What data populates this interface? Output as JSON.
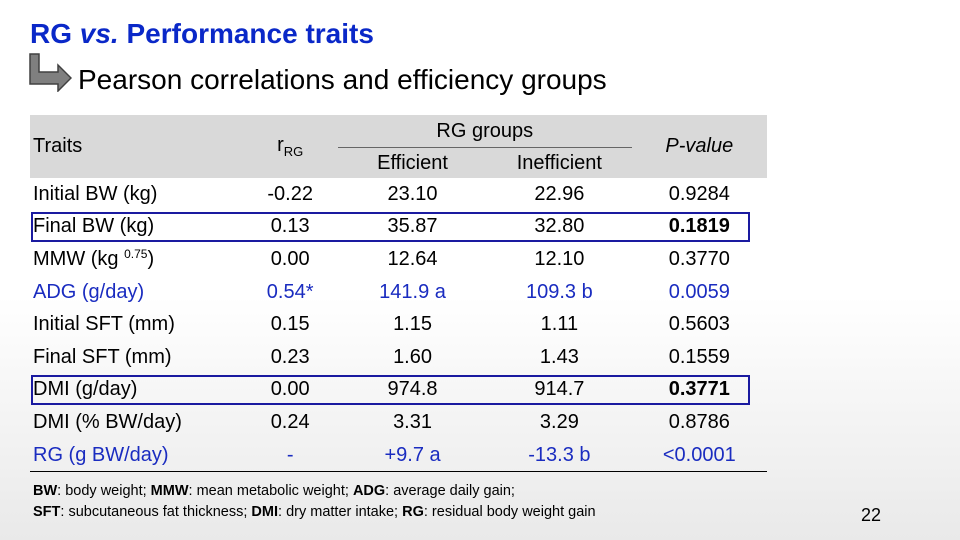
{
  "title": {
    "prefix": "RG ",
    "emphasis": "vs.",
    "suffix": " Performance traits"
  },
  "subtitle": "Pearson correlations and efficiency groups",
  "arrow_icon": "elbow-arrow-right-icon",
  "table": {
    "headers": {
      "traits": "Traits",
      "r_main": "r",
      "r_sub": "RG",
      "groups": "RG groups",
      "efficient": "Efficient",
      "inefficient": "Inefficient",
      "pvalue": "P-value"
    },
    "rows": [
      {
        "trait": "Initial BW (kg)",
        "trait_sup": "",
        "trait_close": "",
        "r": "-0.22",
        "efficient": "23.10",
        "inefficient": "22.96",
        "p": "0.9284",
        "blue": false,
        "highlight": false
      },
      {
        "trait": "Final BW (kg)",
        "trait_sup": "",
        "trait_close": "",
        "r": "0.13",
        "efficient": "35.87",
        "inefficient": "32.80",
        "p": "0.1819",
        "blue": false,
        "highlight": true
      },
      {
        "trait": "MMW (kg ",
        "trait_sup": "0.75",
        "trait_close": ")",
        "r": "0.00",
        "efficient": "12.64",
        "inefficient": "12.10",
        "p": "0.3770",
        "blue": false,
        "highlight": false
      },
      {
        "trait": "ADG (g/day)",
        "trait_sup": "",
        "trait_close": "",
        "r": "0.54*",
        "efficient": "141.9 a",
        "inefficient": "109.3 b",
        "p": "0.0059",
        "blue": true,
        "highlight": false
      },
      {
        "trait": "Initial SFT (mm)",
        "trait_sup": "",
        "trait_close": "",
        "r": "0.15",
        "efficient": "1.15",
        "inefficient": "1.11",
        "p": "0.5603",
        "blue": false,
        "highlight": false
      },
      {
        "trait": "Final SFT (mm)",
        "trait_sup": "",
        "trait_close": "",
        "r": "0.23",
        "efficient": "1.60",
        "inefficient": "1.43",
        "p": "0.1559",
        "blue": false,
        "highlight": false
      },
      {
        "trait": "DMI (g/day)",
        "trait_sup": "",
        "trait_close": "",
        "r": "0.00",
        "efficient": "974.8",
        "inefficient": "914.7",
        "p": "0.3771",
        "blue": false,
        "highlight": true
      },
      {
        "trait": "DMI (% BW/day)",
        "trait_sup": "",
        "trait_close": "",
        "r": "0.24",
        "efficient": "3.31",
        "inefficient": "3.29",
        "p": "0.8786",
        "blue": false,
        "highlight": false
      },
      {
        "trait": "RG (g BW/day)",
        "trait_sup": "",
        "trait_close": "",
        "r": "-",
        "efficient": "+9.7 a",
        "inefficient": "-13.3 b",
        "p": "<0.0001",
        "blue": true,
        "highlight": false
      }
    ]
  },
  "footnotes": [
    [
      {
        "abbr": "BW",
        "desc": ": body weight; "
      },
      {
        "abbr": "MMW",
        "desc": ": mean metabolic weight; "
      },
      {
        "abbr": "ADG",
        "desc": ": average daily gain;"
      }
    ],
    [
      {
        "abbr": "SFT",
        "desc": ": subcutaneous fat thickness; "
      },
      {
        "abbr": "DMI",
        "desc": ": dry matter intake; "
      },
      {
        "abbr": "RG",
        "desc": ": residual body weight gain"
      }
    ]
  ],
  "page_number": "22"
}
